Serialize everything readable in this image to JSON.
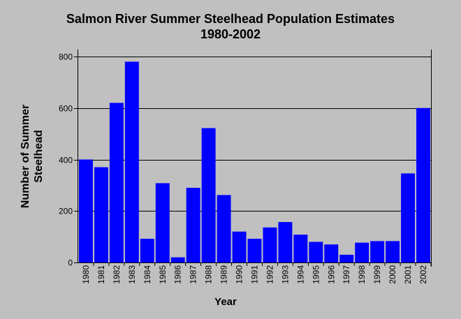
{
  "chart_data": {
    "type": "bar",
    "title": "Salmon River Summer Steelhead Population Estimates",
    "subtitle": "1980-2002",
    "xlabel": "Year",
    "ylabel": "Number of Summer Steelhead",
    "ylim": [
      0,
      800
    ],
    "yticks": [
      0,
      200,
      400,
      600,
      800
    ],
    "grid": true,
    "bar_color": "#0000ff",
    "categories": [
      "1980",
      "1981",
      "1982",
      "1983",
      "1984",
      "1985",
      "1986",
      "1987",
      "1988",
      "1989",
      "1990",
      "1991",
      "1992",
      "1993",
      "1994",
      "1995",
      "1996",
      "1997",
      "1998",
      "1999",
      "2000",
      "2001",
      "2002"
    ],
    "values": [
      400,
      370,
      620,
      780,
      92,
      308,
      20,
      290,
      522,
      262,
      120,
      92,
      136,
      157,
      108,
      80,
      70,
      30,
      77,
      83,
      83,
      346,
      600
    ]
  }
}
